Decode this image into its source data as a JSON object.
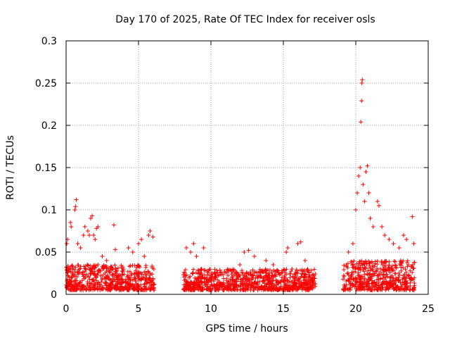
{
  "chart_data": {
    "type": "scatter",
    "title": "Day 170 of 2025, Rate Of TEC Index for receiver osls",
    "xlabel": "GPS time / hours",
    "ylabel": "ROTI / TECUs",
    "xlim": [
      0,
      25
    ],
    "ylim": [
      0,
      0.3
    ],
    "grid": true,
    "xticks": [
      0,
      5,
      10,
      15,
      20,
      25
    ],
    "xtick_labels": [
      "0",
      "5",
      "10",
      "15",
      "20",
      "25"
    ],
    "yticks": [
      0,
      0.05,
      0.1,
      0.15,
      0.2,
      0.25,
      0.3
    ],
    "ytick_labels": [
      "0",
      "0.05",
      "0.1",
      "0.15",
      "0.2",
      "0.25",
      "0.3"
    ],
    "marker": "+",
    "color": "#ff0000",
    "data_segments": [
      {
        "x_start": 0.0,
        "x_end": 6.1,
        "typical_range": [
          0.005,
          0.035
        ]
      },
      {
        "x_start": 8.1,
        "x_end": 17.2,
        "typical_range": [
          0.005,
          0.03
        ]
      },
      {
        "x_start": 19.1,
        "x_end": 24.1,
        "typical_range": [
          0.005,
          0.04
        ]
      }
    ],
    "points": [
      [
        0.05,
        0.06
      ],
      [
        0.1,
        0.065
      ],
      [
        0.3,
        0.085
      ],
      [
        0.35,
        0.08
      ],
      [
        0.6,
        0.1
      ],
      [
        0.65,
        0.104
      ],
      [
        0.7,
        0.112
      ],
      [
        0.8,
        0.06
      ],
      [
        1.0,
        0.055
      ],
      [
        1.2,
        0.07
      ],
      [
        1.3,
        0.08
      ],
      [
        1.5,
        0.075
      ],
      [
        1.6,
        0.07
      ],
      [
        1.7,
        0.09
      ],
      [
        1.8,
        0.093
      ],
      [
        1.9,
        0.07
      ],
      [
        2.0,
        0.065
      ],
      [
        2.1,
        0.078
      ],
      [
        2.2,
        0.08
      ],
      [
        2.5,
        0.045
      ],
      [
        2.8,
        0.04
      ],
      [
        3.3,
        0.082
      ],
      [
        3.4,
        0.053
      ],
      [
        4.3,
        0.055
      ],
      [
        4.6,
        0.05
      ],
      [
        5.0,
        0.06
      ],
      [
        5.2,
        0.065
      ],
      [
        5.4,
        0.045
      ],
      [
        5.7,
        0.07
      ],
      [
        5.8,
        0.075
      ],
      [
        6.0,
        0.068
      ],
      [
        8.3,
        0.055
      ],
      [
        8.6,
        0.05
      ],
      [
        8.8,
        0.06
      ],
      [
        9.0,
        0.045
      ],
      [
        9.5,
        0.055
      ],
      [
        12.0,
        0.035
      ],
      [
        12.3,
        0.05
      ],
      [
        12.6,
        0.052
      ],
      [
        13.0,
        0.045
      ],
      [
        13.8,
        0.04
      ],
      [
        14.3,
        0.035
      ],
      [
        15.2,
        0.05
      ],
      [
        15.3,
        0.055
      ],
      [
        16.0,
        0.06
      ],
      [
        16.2,
        0.062
      ],
      [
        16.5,
        0.04
      ],
      [
        19.5,
        0.05
      ],
      [
        19.8,
        0.06
      ],
      [
        20.0,
        0.1
      ],
      [
        20.1,
        0.12
      ],
      [
        20.2,
        0.14
      ],
      [
        20.3,
        0.15
      ],
      [
        20.35,
        0.204
      ],
      [
        20.4,
        0.229
      ],
      [
        20.42,
        0.25
      ],
      [
        20.45,
        0.254
      ],
      [
        20.5,
        0.13
      ],
      [
        20.6,
        0.11
      ],
      [
        20.7,
        0.145
      ],
      [
        20.8,
        0.152
      ],
      [
        20.9,
        0.12
      ],
      [
        21.0,
        0.09
      ],
      [
        21.2,
        0.08
      ],
      [
        21.5,
        0.11
      ],
      [
        21.6,
        0.105
      ],
      [
        21.8,
        0.08
      ],
      [
        22.0,
        0.07
      ],
      [
        22.3,
        0.065
      ],
      [
        22.6,
        0.06
      ],
      [
        23.0,
        0.055
      ],
      [
        23.3,
        0.07
      ],
      [
        23.5,
        0.065
      ],
      [
        23.9,
        0.092
      ],
      [
        24.0,
        0.06
      ]
    ]
  }
}
